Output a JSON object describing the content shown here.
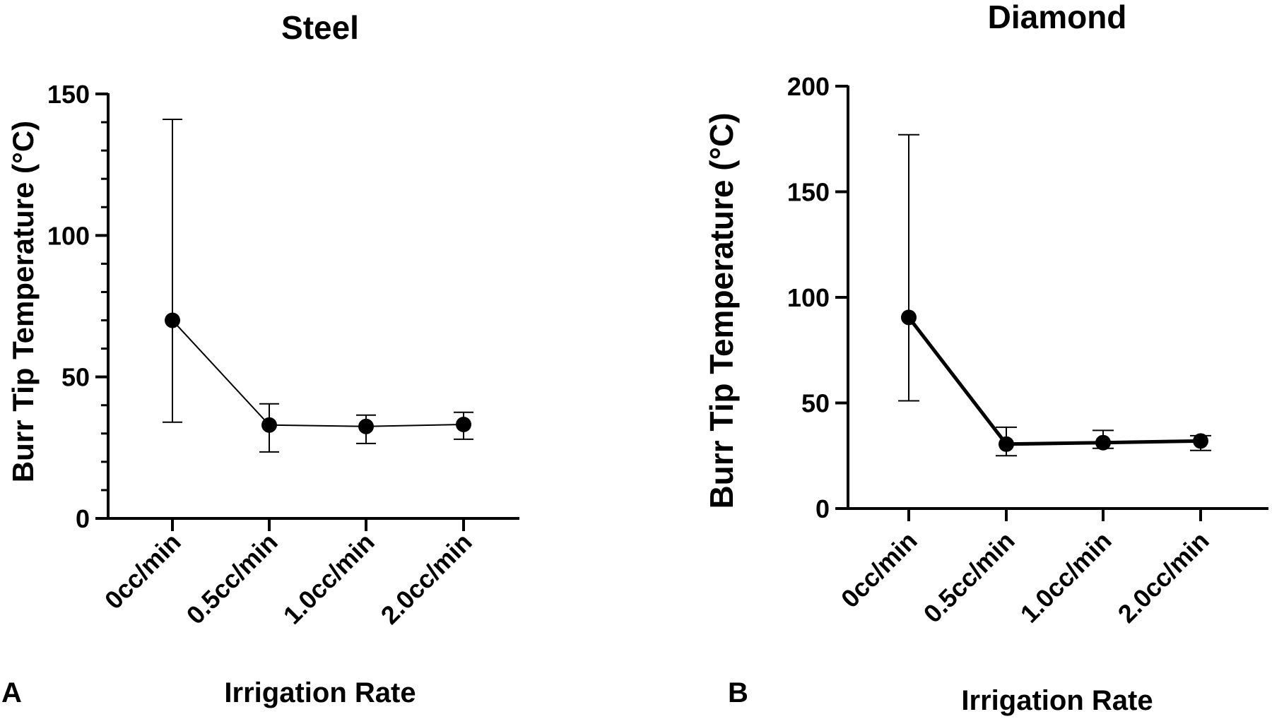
{
  "chart_data": [
    {
      "panel_label": "A",
      "type": "line",
      "title": "Steel",
      "xlabel": "Irrigation Rate",
      "ylabel": "Burr Tip Temperature (°C)",
      "categories": [
        "0cc/min",
        "0.5cc/min",
        "1.0cc/min",
        "2.0cc/min"
      ],
      "ylim": [
        0,
        150
      ],
      "yticks": [
        0,
        50,
        100,
        150
      ],
      "ytick_labels": [
        "0",
        "50",
        "100",
        "150"
      ],
      "minor_ticks_per_major": 4,
      "series": [
        {
          "values": [
            70,
            33,
            32.5,
            33.2
          ],
          "error_low": [
            34,
            23.5,
            26.5,
            28
          ],
          "error_high": [
            141,
            40.5,
            36.5,
            37.5
          ]
        }
      ]
    },
    {
      "panel_label": "B",
      "type": "line",
      "title": "Diamond",
      "xlabel": "Irrigation Rate",
      "ylabel": "Burr Tip Temperature (°C)",
      "categories": [
        "0cc/min",
        "0.5cc/min",
        "1.0cc/min",
        "2.0cc/min"
      ],
      "ylim": [
        0,
        200
      ],
      "yticks": [
        0,
        50,
        100,
        150,
        200
      ],
      "ytick_labels": [
        "0",
        "50",
        "100",
        "150",
        "200"
      ],
      "minor_ticks_per_major": 0,
      "series": [
        {
          "values": [
            90.5,
            30.5,
            31.2,
            32
          ],
          "error_low": [
            51,
            25,
            28.5,
            27.5
          ],
          "error_high": [
            177,
            38.5,
            37,
            34.5
          ]
        }
      ]
    }
  ]
}
